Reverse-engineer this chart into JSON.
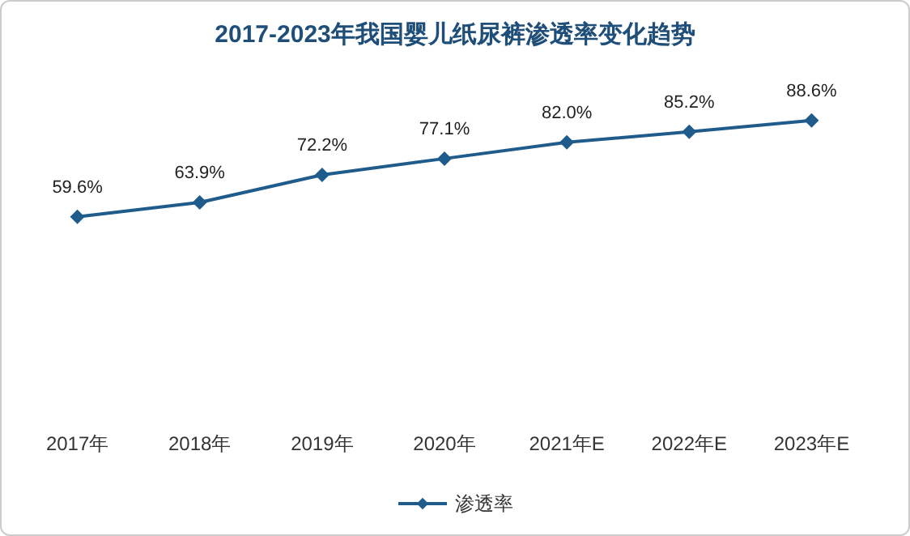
{
  "chart_data": {
    "type": "line",
    "title": "2017-2023年我国婴儿纸尿裤渗透率变化趋势",
    "categories": [
      "2017年",
      "2018年",
      "2019年",
      "2020年",
      "2021年E",
      "2022年E",
      "2023年E"
    ],
    "series": [
      {
        "name": "渗透率",
        "color": "#1f5c8b",
        "values": [
          59.6,
          63.9,
          72.2,
          77.1,
          82.0,
          85.2,
          88.6
        ],
        "value_labels": [
          "59.6%",
          "63.9%",
          "72.2%",
          "77.1%",
          "82.0%",
          "85.2%",
          "88.6%"
        ]
      }
    ],
    "marker": "diamond",
    "legend": "bottom",
    "tick_labels": "x"
  }
}
